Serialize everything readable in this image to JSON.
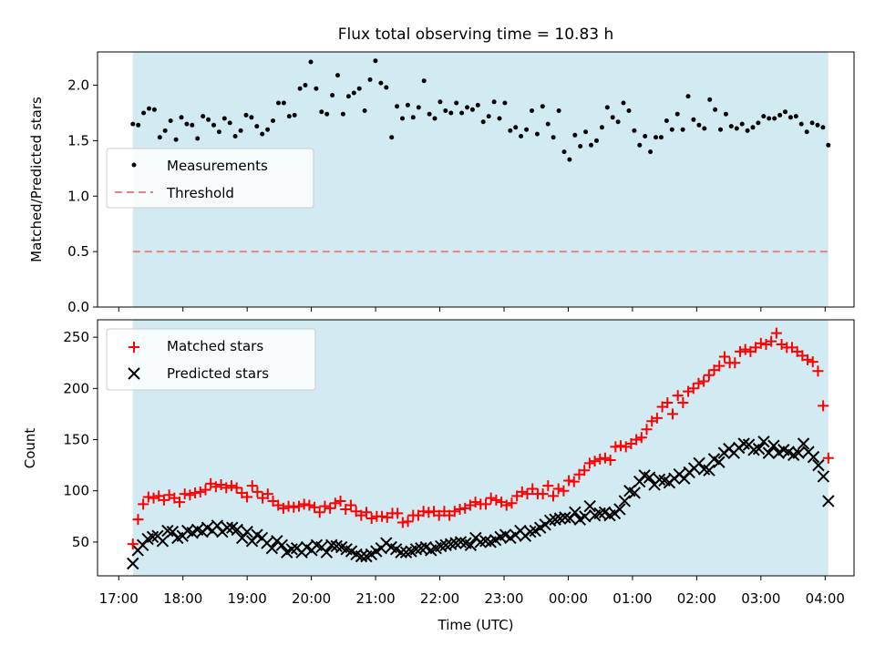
{
  "title": "Flux total observing time = 10.83 h",
  "colors": {
    "shade": "#add8e6",
    "matched": "#ff0000",
    "predicted": "#000000",
    "measurement": "#000000",
    "threshold": "#f08080"
  },
  "chart_data": [
    {
      "type": "scatter",
      "ylabel": "Matched/Predicted stars",
      "ylim": [
        0,
        2.3
      ],
      "yticks": [
        "0.0",
        "0.5",
        "1.0",
        "1.5",
        "2.0"
      ],
      "ytick_values": [
        0,
        0.5,
        1.0,
        1.5,
        2.0
      ],
      "threshold": 0.5,
      "legend": [
        "Measurements",
        "Threshold"
      ],
      "legend_placement": "center-left",
      "series": [
        {
          "name": "Measurements",
          "values": [
            1.65,
            1.64,
            1.75,
            1.79,
            1.78,
            1.53,
            1.59,
            1.68,
            1.51,
            1.71,
            1.65,
            1.64,
            1.52,
            1.72,
            1.69,
            1.64,
            1.58,
            1.7,
            1.66,
            1.54,
            1.59,
            1.73,
            1.71,
            1.63,
            1.56,
            1.6,
            1.68,
            1.84,
            1.84,
            1.72,
            1.73,
            1.97,
            2.0,
            2.21,
            1.97,
            1.76,
            1.74,
            1.91,
            2.09,
            1.74,
            1.9,
            1.93,
            1.97,
            1.77,
            2.05,
            2.22,
            2.02,
            1.98,
            1.53,
            1.81,
            1.7,
            1.82,
            1.71,
            1.8,
            2.04,
            1.74,
            1.7,
            1.85,
            1.77,
            1.75,
            1.84,
            1.75,
            1.8,
            1.78,
            1.82,
            1.67,
            1.72,
            1.85,
            1.7,
            1.84,
            1.59,
            1.62,
            1.54,
            1.6,
            1.77,
            1.56,
            1.81,
            1.65,
            1.53,
            1.77,
            1.4,
            1.33,
            1.55,
            1.45,
            1.58,
            1.46,
            1.5,
            1.62,
            1.8,
            1.71,
            1.67,
            1.84,
            1.77,
            1.59,
            1.46,
            1.54,
            1.4,
            1.53,
            1.53,
            1.68,
            1.6,
            1.74,
            1.6,
            1.9,
            1.69,
            1.64,
            1.61,
            1.87,
            1.78,
            1.6,
            1.74,
            1.63,
            1.61,
            1.65,
            1.59,
            1.62,
            1.66,
            1.72,
            1.7,
            1.7,
            1.73,
            1.76,
            1.71,
            1.72,
            1.65,
            1.58,
            1.66,
            1.64,
            1.62,
            1.46
          ]
        }
      ]
    },
    {
      "type": "scatter",
      "ylabel": "Count",
      "xlabel": "Time (UTC)",
      "ylim": [
        17,
        267
      ],
      "yticks": [
        "50",
        "100",
        "150",
        "200",
        "250"
      ],
      "ytick_values": [
        50,
        100,
        150,
        200,
        250
      ],
      "xticks": [
        "17:00",
        "18:00",
        "19:00",
        "20:00",
        "21:00",
        "22:00",
        "23:00",
        "00:00",
        "01:00",
        "02:00",
        "03:00",
        "04:00"
      ],
      "xtick_hours": [
        0,
        1,
        2,
        3,
        4,
        5,
        6,
        7,
        8,
        9,
        10,
        11
      ],
      "x_range_hours": [
        -0.33,
        11.45
      ],
      "observing_hours": [
        0.22,
        11.05
      ],
      "legend": [
        "Matched stars",
        "Predicted stars"
      ],
      "legend_placement": "top-left",
      "series": [
        {
          "name": "Matched stars",
          "values": [
            48,
            72,
            87,
            94,
            93,
            95,
            91,
            96,
            93,
            89,
            97,
            96,
            98,
            99,
            101,
            107,
            104,
            106,
            103,
            105,
            103,
            98,
            94,
            105,
            99,
            93,
            97,
            90,
            86,
            83,
            85,
            84,
            85,
            87,
            86,
            84,
            79,
            85,
            83,
            88,
            90,
            82,
            86,
            80,
            76,
            79,
            73,
            75,
            75,
            74,
            78,
            78,
            69,
            70,
            76,
            76,
            80,
            79,
            80,
            76,
            80,
            76,
            80,
            82,
            83,
            86,
            89,
            87,
            87,
            93,
            91,
            89,
            86,
            88,
            95,
            99,
            97,
            102,
            97,
            97,
            105,
            95,
            102,
            100,
            110,
            109,
            116,
            120,
            127,
            129,
            131,
            132,
            130,
            143,
            144,
            143,
            146,
            150,
            152,
            160,
            168,
            171,
            182,
            186,
            175,
            193,
            186,
            197,
            200,
            205,
            207,
            213,
            218,
            222,
            231,
            225,
            225,
            236,
            238,
            236,
            240,
            244,
            243,
            246,
            254,
            243,
            240,
            240,
            236,
            232,
            228,
            226,
            217,
            183,
            132
          ]
        },
        {
          "name": "Predicted stars",
          "values": [
            29,
            42,
            47,
            53,
            55,
            56,
            51,
            61,
            60,
            54,
            56,
            61,
            59,
            62,
            60,
            64,
            61,
            66,
            60,
            64,
            64,
            62,
            54,
            60,
            51,
            57,
            54,
            49,
            44,
            51,
            47,
            40,
            43,
            44,
            40,
            45,
            42,
            47,
            45,
            40,
            47,
            46,
            45,
            43,
            41,
            38,
            36,
            36,
            38,
            41,
            44,
            49,
            45,
            43,
            40,
            40,
            41,
            43,
            44,
            45,
            42,
            44,
            46,
            47,
            48,
            49,
            50,
            49,
            47,
            54,
            50,
            51,
            50,
            52,
            55,
            57,
            54,
            57,
            61,
            56,
            60,
            61,
            64,
            67,
            71,
            72,
            73,
            74,
            73,
            79,
            72,
            75,
            85,
            76,
            78,
            79,
            76,
            78,
            82,
            90,
            100,
            98,
            109,
            115,
            113,
            106,
            111,
            110,
            108,
            112,
            116,
            112,
            118,
            122,
            127,
            121,
            120,
            131,
            128,
            137,
            141,
            137,
            142,
            146,
            145,
            140,
            141,
            148,
            137,
            144,
            137,
            140,
            138,
            135,
            137,
            146,
            138,
            133,
            125,
            114,
            90
          ]
        }
      ]
    }
  ]
}
